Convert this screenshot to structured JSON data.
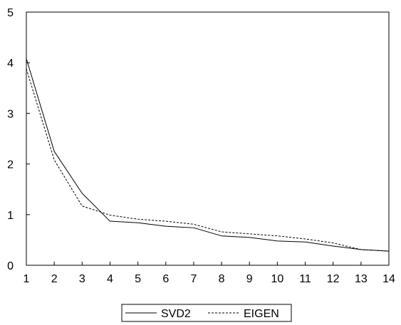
{
  "chart_data": {
    "type": "line",
    "title": "",
    "xlabel": "",
    "ylabel": "",
    "x": [
      1,
      2,
      3,
      4,
      5,
      6,
      7,
      8,
      9,
      10,
      11,
      12,
      13,
      14
    ],
    "xlim": [
      1,
      14
    ],
    "ylim": [
      0,
      5
    ],
    "x_ticks": [
      "1",
      "2",
      "3",
      "4",
      "5",
      "6",
      "7",
      "8",
      "9",
      "10",
      "11",
      "12",
      "13",
      "14"
    ],
    "y_ticks": [
      "0",
      "1",
      "2",
      "3",
      "4",
      "5"
    ],
    "grid": false,
    "legend_position": "bottom-center",
    "series": [
      {
        "name": "SVD2",
        "line_style": "solid",
        "color": "#000000",
        "values": [
          4.08,
          2.25,
          1.42,
          0.87,
          0.84,
          0.77,
          0.74,
          0.58,
          0.55,
          0.48,
          0.46,
          0.38,
          0.31,
          0.28
        ]
      },
      {
        "name": "EIGEN",
        "line_style": "dashed",
        "color": "#000000",
        "values": [
          3.88,
          2.08,
          1.17,
          0.99,
          0.91,
          0.87,
          0.81,
          0.66,
          0.62,
          0.58,
          0.52,
          0.44,
          0.31,
          0.28
        ]
      }
    ]
  }
}
